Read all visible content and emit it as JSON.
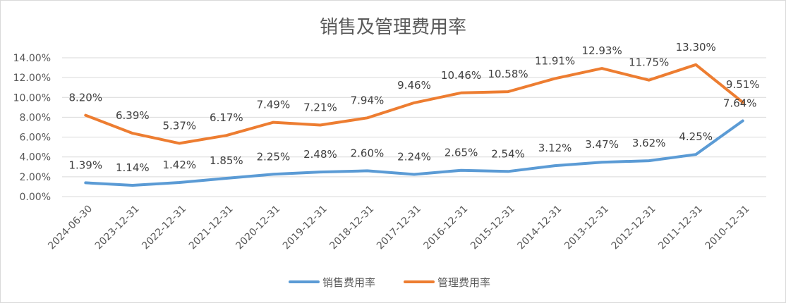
{
  "chart_data": {
    "type": "line",
    "title": "销售及管理费用率",
    "categories": [
      "2024-06-30",
      "2023-12-31",
      "2022-12-31",
      "2021-12-31",
      "2020-12-31",
      "2019-12-31",
      "2018-12-31",
      "2017-12-31",
      "2016-12-31",
      "2015-12-31",
      "2014-12-31",
      "2013-12-31",
      "2012-12-31",
      "2011-12-31",
      "2010-12-31"
    ],
    "series": [
      {
        "name": "销售费用率",
        "color": "#5B9BD5",
        "values": [
          1.39,
          1.14,
          1.42,
          1.85,
          2.25,
          2.48,
          2.6,
          2.24,
          2.65,
          2.54,
          3.12,
          3.47,
          3.62,
          4.25,
          7.64
        ],
        "labels": [
          "1.39%",
          "1.14%",
          "1.42%",
          "1.85%",
          "2.25%",
          "2.48%",
          "2.60%",
          "2.24%",
          "2.65%",
          "2.54%",
          "3.12%",
          "3.47%",
          "3.62%",
          "4.25%",
          "7.64%"
        ]
      },
      {
        "name": "管理费用率",
        "color": "#ED7D31",
        "values": [
          8.2,
          6.39,
          5.37,
          6.17,
          7.49,
          7.21,
          7.94,
          9.46,
          10.46,
          10.58,
          11.91,
          12.93,
          11.75,
          13.3,
          9.51
        ],
        "labels": [
          "8.20%",
          "6.39%",
          "5.37%",
          "6.17%",
          "7.49%",
          "7.21%",
          "7.94%",
          "9.46%",
          "10.46%",
          "10.58%",
          "11.91%",
          "12.93%",
          "11.75%",
          "13.30%",
          "9.51%"
        ]
      }
    ],
    "y_ticks": [
      "0.00%",
      "2.00%",
      "4.00%",
      "6.00%",
      "8.00%",
      "10.00%",
      "12.00%",
      "14.00%"
    ],
    "ylim": [
      0,
      14
    ],
    "grid": true,
    "legend_position": "bottom"
  }
}
